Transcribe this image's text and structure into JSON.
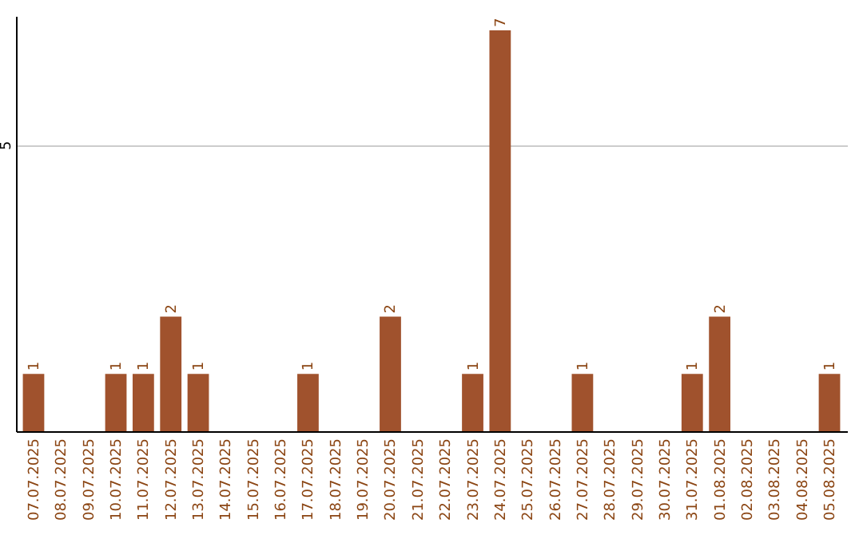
{
  "chart_data": {
    "type": "bar",
    "categories": [
      "07.07.2025",
      "08.07.2025",
      "09.07.2025",
      "10.07.2025",
      "11.07.2025",
      "12.07.2025",
      "13.07.2025",
      "14.07.2025",
      "15.07.2025",
      "16.07.2025",
      "17.07.2025",
      "18.07.2025",
      "19.07.2025",
      "20.07.2025",
      "21.07.2025",
      "22.07.2025",
      "23.07.2025",
      "24.07.2025",
      "25.07.2025",
      "26.07.2025",
      "27.07.2025",
      "28.07.2025",
      "29.07.2025",
      "30.07.2025",
      "31.07.2025",
      "01.08.2025",
      "02.08.2025",
      "03.08.2025",
      "04.08.2025",
      "05.08.2025"
    ],
    "values": [
      1,
      0,
      0,
      1,
      1,
      2,
      1,
      0,
      0,
      0,
      1,
      0,
      0,
      2,
      0,
      0,
      1,
      7,
      0,
      0,
      1,
      0,
      0,
      0,
      1,
      2,
      0,
      0,
      0,
      1
    ],
    "value_labels": [
      "1",
      null,
      null,
      "1",
      "1",
      "2",
      "1",
      null,
      null,
      null,
      "1",
      null,
      null,
      "2",
      null,
      null,
      "1",
      "7",
      null,
      null,
      "1",
      null,
      null,
      null,
      "1",
      "2",
      null,
      null,
      null,
      "1"
    ],
    "color": "#a0522d",
    "ylim": [
      0,
      7.25
    ],
    "yticks": [
      5
    ],
    "grid": "y"
  }
}
